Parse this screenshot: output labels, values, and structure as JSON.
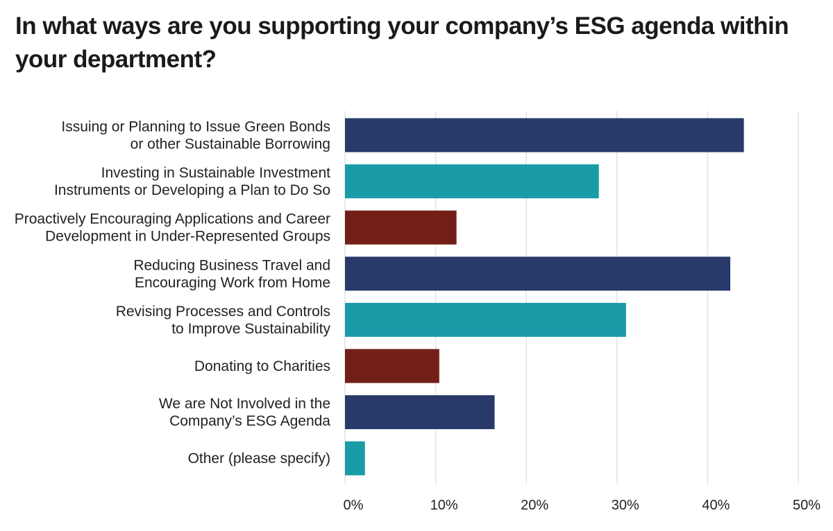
{
  "chart_data": {
    "type": "bar",
    "orientation": "horizontal",
    "title": "In what ways are you supporting your company’s ESG agenda within your department?",
    "categories": [
      [
        "Issuing or Planning to Issue Green Bonds",
        "or other Sustainable Borrowing"
      ],
      [
        "Investing in Sustainable Investment",
        "Instruments or Developing a Plan to Do So"
      ],
      [
        "Proactively Encouraging Applications and Career",
        "Development in Under-Represented Groups"
      ],
      [
        "Reducing Business Travel and",
        "Encouraging Work from Home"
      ],
      [
        "Revising Processes and Controls",
        "to Improve Sustainability"
      ],
      [
        "Donating to Charities"
      ],
      [
        "We are Not Involved in the",
        "Company’s ESG Agenda"
      ],
      [
        "Other (please specify)"
      ]
    ],
    "values": [
      44,
      28,
      12.3,
      42.5,
      31,
      10.4,
      16.5,
      2.2
    ],
    "colors": [
      "#283a69",
      "#1a9ba8",
      "#721f17",
      "#283a69",
      "#1a9ba8",
      "#721f17",
      "#283a69",
      "#1a9ba8"
    ],
    "xlim": [
      0,
      50
    ],
    "ticks": [
      0,
      10,
      20,
      30,
      40,
      50
    ],
    "tick_labels": [
      "0%",
      "10%",
      "20%",
      "30%",
      "40%",
      "50%"
    ],
    "grid": true,
    "gridline_color": "#e2e2e2",
    "xlabel": "",
    "ylabel": ""
  }
}
